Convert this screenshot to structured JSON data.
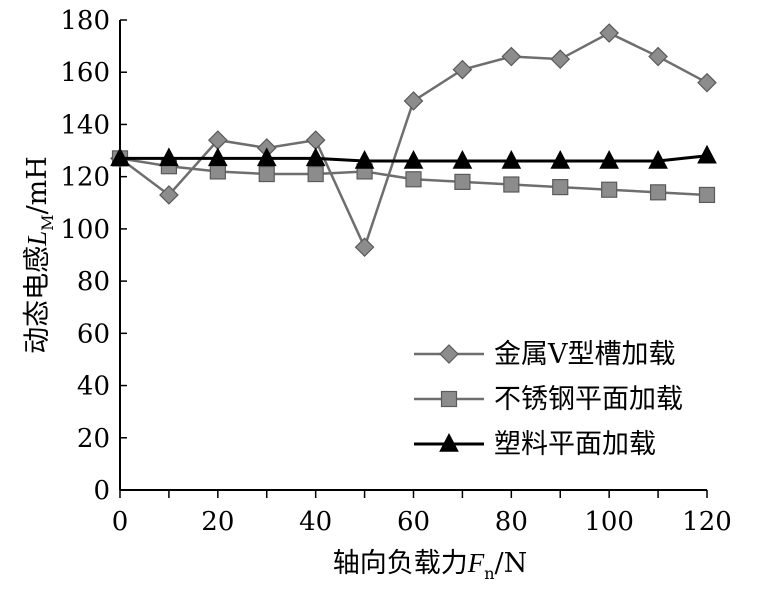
{
  "chart_data": {
    "type": "line",
    "x": [
      0,
      10,
      20,
      30,
      40,
      50,
      60,
      70,
      80,
      90,
      100,
      110,
      120
    ],
    "xlim": [
      0,
      120
    ],
    "ylim": [
      0,
      180
    ],
    "xticks": [
      0,
      20,
      40,
      60,
      80,
      100,
      120
    ],
    "yticks": [
      0,
      20,
      40,
      60,
      80,
      100,
      120,
      140,
      160,
      180
    ],
    "xlabel": {
      "main": "轴向负载力",
      "var": "F",
      "sub": "n",
      "unit": "/N"
    },
    "ylabel": {
      "main": "动态电感",
      "var": "L",
      "sub": "M",
      "unit": "/mH"
    },
    "grid": false,
    "legend_position": "bottom-right",
    "series": [
      {
        "name": "金属V型槽加载",
        "marker": "diamond",
        "color": "#6e6e6e",
        "values": [
          127,
          113,
          134,
          131,
          134,
          93,
          149,
          161,
          166,
          165,
          175,
          166,
          156
        ]
      },
      {
        "name": "不锈钢平面加载",
        "marker": "square",
        "color": "#6e6e6e",
        "values": [
          127,
          124,
          122,
          121,
          121,
          122,
          119,
          118,
          117,
          116,
          115,
          114,
          113
        ]
      },
      {
        "name": "塑料平面加载",
        "marker": "triangle",
        "color": "#000000",
        "values": [
          127,
          127,
          127,
          127,
          127,
          126,
          126,
          126,
          126,
          126,
          126,
          126,
          128
        ]
      }
    ]
  }
}
